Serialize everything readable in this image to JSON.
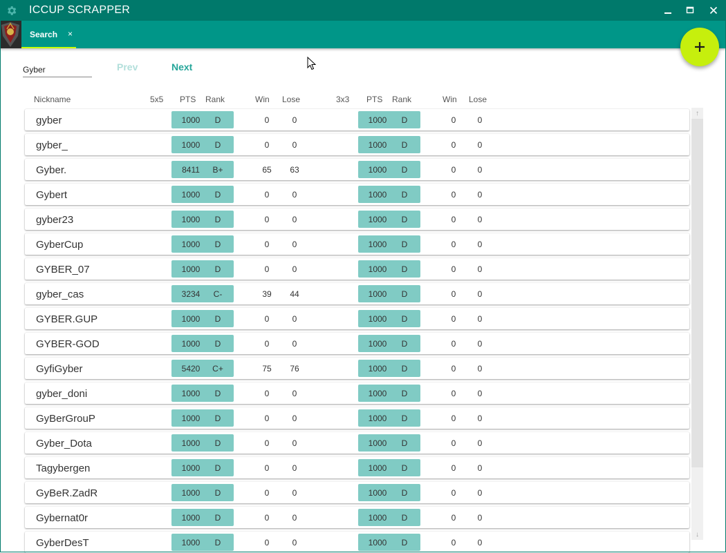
{
  "app": {
    "title": "ICCUP SCRAPPER"
  },
  "icons": {
    "settings": "gear-icon",
    "minimize": "minimize-icon",
    "maximize": "maximize-icon",
    "close": "close-icon",
    "add": "plus-icon"
  },
  "colors": {
    "title_bar": "#00796b",
    "tab_bar": "#009688",
    "tab_indicator": "#c6ff00",
    "fab": "#c6ef0d",
    "chip": "#80cbc4",
    "prev_disabled": "#b2dfdb",
    "next_enabled": "#26a69a"
  },
  "tabs": [
    {
      "label": "Search",
      "close": "×",
      "active": true
    }
  ],
  "search": {
    "value": "Gyber",
    "prev_label": "Prev",
    "next_label": "Next"
  },
  "columns": {
    "nickname": "Nickname",
    "mode_5x5": "5x5",
    "pts_5x5": "PTS",
    "rank_5x5": "Rank",
    "win_5x5": "Win",
    "lose_5x5": "Lose",
    "mode_3x3": "3x3",
    "pts_3x3": "PTS",
    "rank_3x3": "Rank",
    "win_3x3": "Win",
    "lose_3x3": "Lose"
  },
  "rows": [
    {
      "nickname": "gyber",
      "pts5": "1000",
      "rank5": "D",
      "win5": "0",
      "lose5": "0",
      "pts3": "1000",
      "rank3": "D",
      "win3": "0",
      "lose3": "0"
    },
    {
      "nickname": "gyber_",
      "pts5": "1000",
      "rank5": "D",
      "win5": "0",
      "lose5": "0",
      "pts3": "1000",
      "rank3": "D",
      "win3": "0",
      "lose3": "0"
    },
    {
      "nickname": "Gyber.",
      "pts5": "8411",
      "rank5": "B+",
      "win5": "65",
      "lose5": "63",
      "pts3": "1000",
      "rank3": "D",
      "win3": "0",
      "lose3": "0"
    },
    {
      "nickname": "Gybert",
      "pts5": "1000",
      "rank5": "D",
      "win5": "0",
      "lose5": "0",
      "pts3": "1000",
      "rank3": "D",
      "win3": "0",
      "lose3": "0"
    },
    {
      "nickname": "gyber23",
      "pts5": "1000",
      "rank5": "D",
      "win5": "0",
      "lose5": "0",
      "pts3": "1000",
      "rank3": "D",
      "win3": "0",
      "lose3": "0"
    },
    {
      "nickname": "GyberCup",
      "pts5": "1000",
      "rank5": "D",
      "win5": "0",
      "lose5": "0",
      "pts3": "1000",
      "rank3": "D",
      "win3": "0",
      "lose3": "0"
    },
    {
      "nickname": "GYBER_07",
      "pts5": "1000",
      "rank5": "D",
      "win5": "0",
      "lose5": "0",
      "pts3": "1000",
      "rank3": "D",
      "win3": "0",
      "lose3": "0"
    },
    {
      "nickname": "gyber_cas",
      "pts5": "3234",
      "rank5": "C-",
      "win5": "39",
      "lose5": "44",
      "pts3": "1000",
      "rank3": "D",
      "win3": "0",
      "lose3": "0"
    },
    {
      "nickname": "GYBER.GUP",
      "pts5": "1000",
      "rank5": "D",
      "win5": "0",
      "lose5": "0",
      "pts3": "1000",
      "rank3": "D",
      "win3": "0",
      "lose3": "0"
    },
    {
      "nickname": "GYBER-GOD",
      "pts5": "1000",
      "rank5": "D",
      "win5": "0",
      "lose5": "0",
      "pts3": "1000",
      "rank3": "D",
      "win3": "0",
      "lose3": "0"
    },
    {
      "nickname": "GyfiGyber",
      "pts5": "5420",
      "rank5": "C+",
      "win5": "75",
      "lose5": "76",
      "pts3": "1000",
      "rank3": "D",
      "win3": "0",
      "lose3": "0"
    },
    {
      "nickname": "gyber_doni",
      "pts5": "1000",
      "rank5": "D",
      "win5": "0",
      "lose5": "0",
      "pts3": "1000",
      "rank3": "D",
      "win3": "0",
      "lose3": "0"
    },
    {
      "nickname": "GyBerGrouP",
      "pts5": "1000",
      "rank5": "D",
      "win5": "0",
      "lose5": "0",
      "pts3": "1000",
      "rank3": "D",
      "win3": "0",
      "lose3": "0"
    },
    {
      "nickname": "Gyber_Dota",
      "pts5": "1000",
      "rank5": "D",
      "win5": "0",
      "lose5": "0",
      "pts3": "1000",
      "rank3": "D",
      "win3": "0",
      "lose3": "0"
    },
    {
      "nickname": "Tagybergen",
      "pts5": "1000",
      "rank5": "D",
      "win5": "0",
      "lose5": "0",
      "pts3": "1000",
      "rank3": "D",
      "win3": "0",
      "lose3": "0"
    },
    {
      "nickname": "GyBeR.ZadR",
      "pts5": "1000",
      "rank5": "D",
      "win5": "0",
      "lose5": "0",
      "pts3": "1000",
      "rank3": "D",
      "win3": "0",
      "lose3": "0"
    },
    {
      "nickname": "Gybernat0r",
      "pts5": "1000",
      "rank5": "D",
      "win5": "0",
      "lose5": "0",
      "pts3": "1000",
      "rank3": "D",
      "win3": "0",
      "lose3": "0"
    },
    {
      "nickname": "GyberDesT",
      "pts5": "1000",
      "rank5": "D",
      "win5": "0",
      "lose5": "0",
      "pts3": "1000",
      "rank3": "D",
      "win3": "0",
      "lose3": "0"
    }
  ],
  "scrollbar": {
    "up_arrow": "↑",
    "down_arrow": "↓"
  }
}
